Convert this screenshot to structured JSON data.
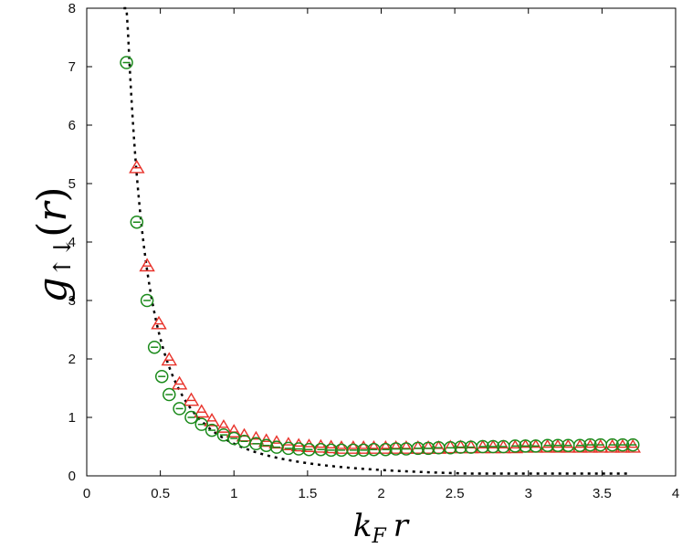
{
  "chart_data": {
    "type": "scatter",
    "title": "",
    "xlabel": "k_F r",
    "ylabel": "g_↑↓(r)",
    "xlim": [
      0,
      4
    ],
    "ylim": [
      0,
      8
    ],
    "x_ticks": [
      "0",
      "0.5",
      "1",
      "1.5",
      "2",
      "2.5",
      "3",
      "3.5",
      "4"
    ],
    "y_ticks": [
      "0",
      "1",
      "2",
      "3",
      "4",
      "5",
      "6",
      "7",
      "8"
    ],
    "grid": false,
    "legend": "none",
    "colors": {
      "series_triangle": "#e8322a",
      "series_circle": "#1a8a1a",
      "curve": "#000000"
    },
    "series": [
      {
        "marker": "triangle",
        "x": [
          0.34,
          0.41,
          0.49,
          0.56,
          0.63,
          0.71,
          0.78,
          0.85,
          0.93,
          1.0,
          1.07,
          1.15,
          1.22,
          1.29,
          1.37,
          1.44,
          1.51,
          1.59,
          1.66,
          1.73,
          1.81,
          1.88,
          1.95,
          2.03,
          2.1,
          2.17,
          2.25,
          2.32,
          2.39,
          2.47,
          2.54,
          2.61,
          2.69,
          2.76,
          2.83,
          2.91,
          2.98,
          3.05,
          3.13,
          3.2,
          3.27,
          3.35,
          3.42,
          3.49,
          3.57,
          3.64,
          3.71
        ],
        "y": [
          5.27,
          3.59,
          2.6,
          1.98,
          1.57,
          1.29,
          1.09,
          0.94,
          0.83,
          0.75,
          0.68,
          0.63,
          0.59,
          0.56,
          0.53,
          0.51,
          0.5,
          0.49,
          0.48,
          0.47,
          0.47,
          0.47,
          0.47,
          0.47,
          0.47,
          0.47,
          0.47,
          0.47,
          0.47,
          0.48,
          0.48,
          0.48,
          0.48,
          0.48,
          0.48,
          0.48,
          0.49,
          0.49,
          0.49,
          0.49,
          0.49,
          0.49,
          0.49,
          0.49,
          0.49,
          0.49,
          0.49
        ]
      },
      {
        "marker": "circle",
        "x": [
          0.27,
          0.34,
          0.41,
          0.46,
          0.51,
          0.56,
          0.63,
          0.71,
          0.78,
          0.85,
          0.93,
          1.0,
          1.07,
          1.15,
          1.22,
          1.29,
          1.37,
          1.44,
          1.51,
          1.59,
          1.66,
          1.73,
          1.81,
          1.88,
          1.95,
          2.03,
          2.1,
          2.17,
          2.25,
          2.32,
          2.39,
          2.47,
          2.54,
          2.61,
          2.69,
          2.76,
          2.83,
          2.91,
          2.98,
          3.05,
          3.13,
          3.2,
          3.27,
          3.35,
          3.42,
          3.49,
          3.57,
          3.64,
          3.71
        ],
        "y": [
          7.07,
          4.34,
          3.0,
          2.2,
          1.7,
          1.39,
          1.15,
          1.0,
          0.88,
          0.78,
          0.7,
          0.64,
          0.59,
          0.55,
          0.52,
          0.49,
          0.47,
          0.46,
          0.45,
          0.45,
          0.44,
          0.44,
          0.44,
          0.44,
          0.45,
          0.45,
          0.46,
          0.46,
          0.47,
          0.47,
          0.48,
          0.48,
          0.49,
          0.49,
          0.5,
          0.5,
          0.5,
          0.51,
          0.51,
          0.51,
          0.52,
          0.52,
          0.52,
          0.52,
          0.53,
          0.53,
          0.53,
          0.53,
          0.53
        ]
      }
    ]
  }
}
